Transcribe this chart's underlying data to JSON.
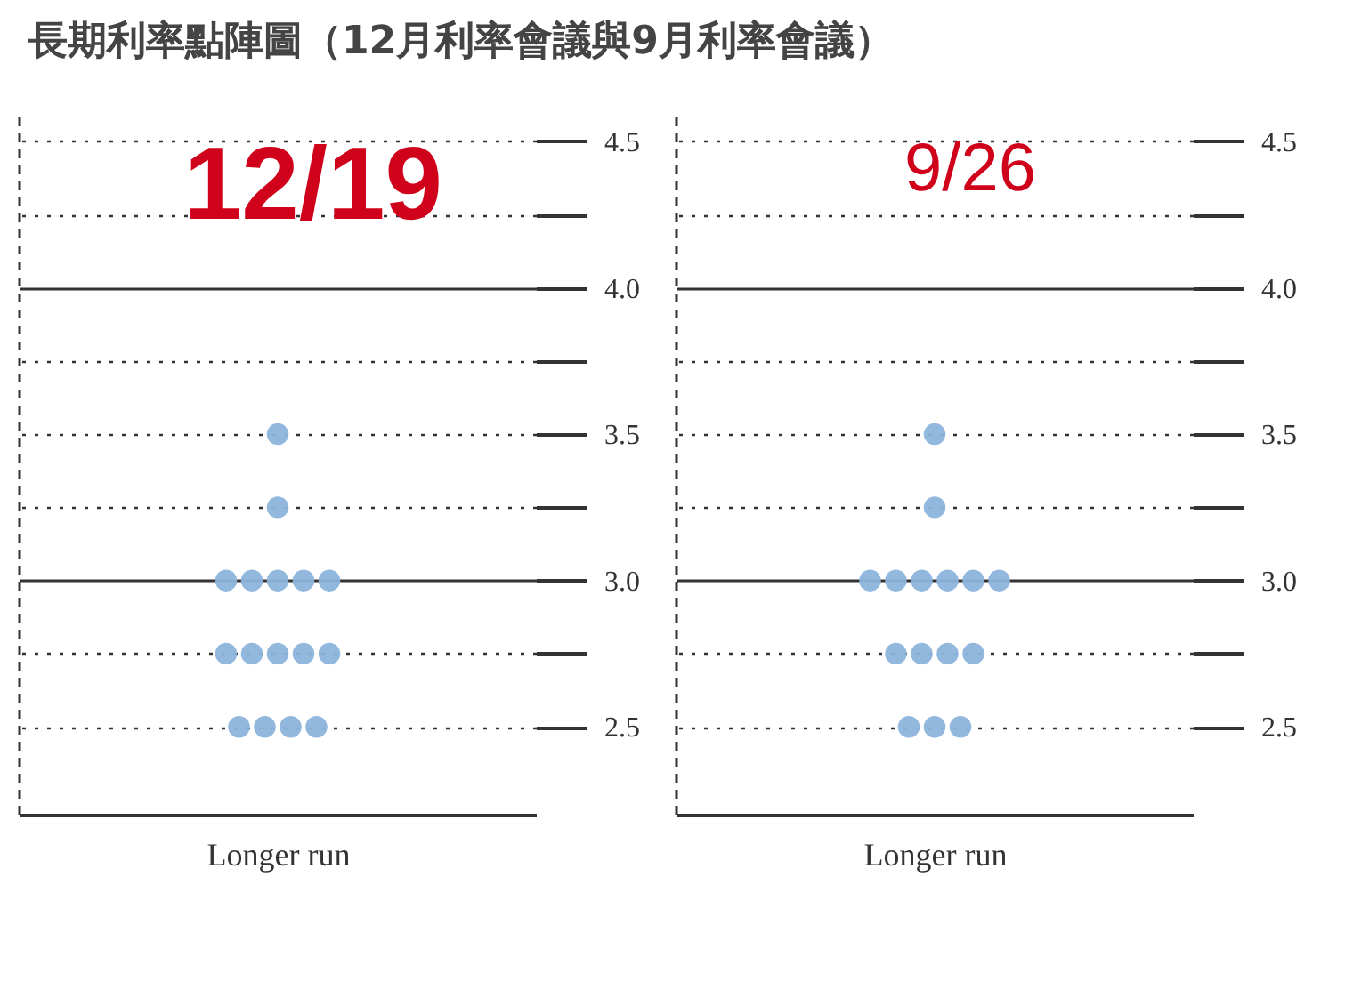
{
  "chart_data": [
    {
      "type": "scatter",
      "title": "長期利率點陣圖（12月利率會議與9月利率會議）",
      "annotations": [
        "12/19"
      ],
      "categories": [
        "Longer run"
      ],
      "series": [
        {
          "color": "#8db4dc",
          "x": [
            "Longer run",
            "Longer run",
            "Longer run",
            "Longer run",
            "Longer run",
            "Longer run",
            "Longer run",
            "Longer run",
            "Longer run",
            "Longer run",
            "Longer run",
            "Longer run",
            "Longer run",
            "Longer run",
            "Longer run",
            "Longer run"
          ],
          "values": [
            3.5,
            3.25,
            3,
            3,
            3,
            3,
            3,
            2.75,
            2.75,
            2.75,
            2.75,
            2.75,
            2.5,
            2.5,
            2.5,
            2.5
          ]
        }
      ],
      "ylim": [
        2.2,
        4.6
      ],
      "yticks": [
        {
          "value": 2.5,
          "label": "2.5"
        },
        {
          "value": 2.75,
          "label": null
        },
        {
          "value": 3,
          "label": "3.0"
        },
        {
          "value": 3.25,
          "label": null
        },
        {
          "value": 3.5,
          "label": "3.5"
        },
        {
          "value": 3.75,
          "label": null
        },
        {
          "value": 4,
          "label": "4.0"
        },
        {
          "value": 4.25,
          "label": null
        },
        {
          "value": 4.5,
          "label": "4.5"
        }
      ],
      "grid": "y",
      "marker": "circle",
      "legend": false
    },
    {
      "type": "scatter",
      "annotations": [
        "9/26"
      ],
      "categories": [
        "Longer run"
      ],
      "series": [
        {
          "color": "#8db4dc",
          "x": [
            "Longer run",
            "Longer run",
            "Longer run",
            "Longer run",
            "Longer run",
            "Longer run",
            "Longer run",
            "Longer run",
            "Longer run",
            "Longer run",
            "Longer run",
            "Longer run",
            "Longer run",
            "Longer run",
            "Longer run"
          ],
          "values": [
            3.5,
            3.25,
            3,
            3,
            3,
            3,
            3,
            3,
            2.75,
            2.75,
            2.75,
            2.75,
            2.5,
            2.5,
            2.5
          ]
        }
      ],
      "ylim": [
        2.2,
        4.6
      ],
      "yticks": [
        {
          "value": 2.5,
          "label": "2.5"
        },
        {
          "value": 2.75,
          "label": null
        },
        {
          "value": 3,
          "label": "3.0"
        },
        {
          "value": 3.25,
          "label": null
        },
        {
          "value": 3.5,
          "label": "3.5"
        },
        {
          "value": 3.75,
          "label": null
        },
        {
          "value": 4,
          "label": "4.0"
        },
        {
          "value": 4.25,
          "label": null
        },
        {
          "value": 4.5,
          "label": "4.5"
        }
      ],
      "grid": "y",
      "marker": "circle",
      "legend": false
    }
  ]
}
